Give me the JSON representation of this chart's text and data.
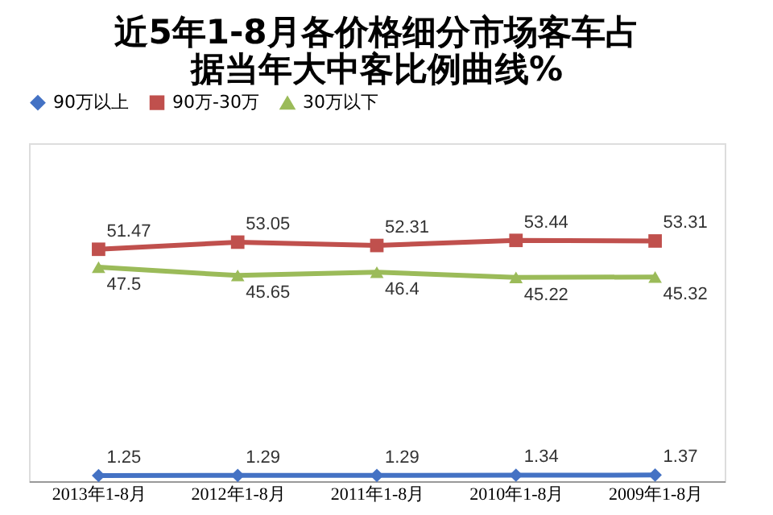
{
  "chart_data": {
    "type": "line",
    "title": [
      "近5年1-8月各价格细分市场客车占",
      "据当年大中客比例曲线%"
    ],
    "categories": [
      "2013年1-8月",
      "2012年1-8月",
      "2011年1-8月",
      "2010年1-8月",
      "2009年1-8月"
    ],
    "series": [
      {
        "name": "90万以上",
        "color": "#4472c4",
        "marker": "diamond",
        "values": [
          1.25,
          1.29,
          1.29,
          1.34,
          1.37
        ]
      },
      {
        "name": "90万-30万",
        "color": "#c0504d",
        "marker": "square",
        "values": [
          51.47,
          53.05,
          52.31,
          53.44,
          53.31
        ]
      },
      {
        "name": "30万以下",
        "color": "#9bbb59",
        "marker": "triangle",
        "values": [
          47.5,
          45.65,
          46.4,
          45.22,
          45.32
        ]
      }
    ],
    "ylim": [
      0,
      75
    ],
    "data_labels": true,
    "legend": "top",
    "grid": false,
    "tick_labels": "x",
    "line_style": "solid"
  }
}
